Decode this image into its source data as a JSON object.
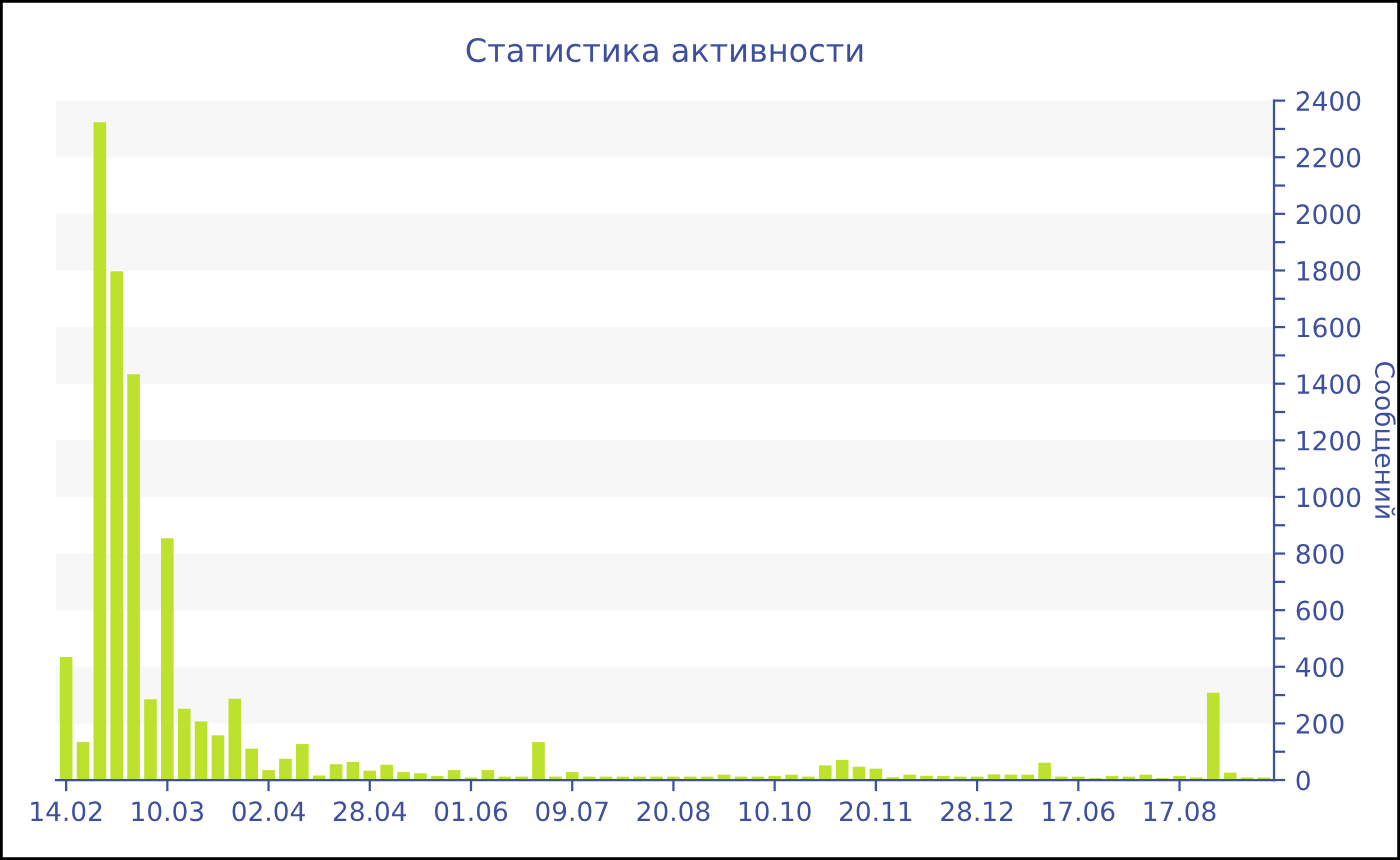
{
  "chart_data": {
    "type": "bar",
    "title": "Статистика активности",
    "ylabel": "Сообщений",
    "color": "#bde22d",
    "categories": [
      "14.02",
      null,
      null,
      null,
      null,
      null,
      "10.03",
      null,
      null,
      null,
      null,
      null,
      "02.04",
      null,
      null,
      null,
      null,
      null,
      "28.04",
      null,
      null,
      null,
      null,
      null,
      "01.06",
      null,
      null,
      null,
      null,
      null,
      "09.07",
      null,
      null,
      null,
      null,
      null,
      "20.08",
      null,
      null,
      null,
      null,
      null,
      "10.10",
      null,
      null,
      null,
      null,
      null,
      "20.11",
      null,
      null,
      null,
      null,
      null,
      "28.12",
      null,
      null,
      null,
      null,
      null,
      "17.06",
      null,
      null,
      null,
      null,
      null,
      "17.08",
      null,
      null,
      null,
      null,
      null
    ],
    "values": [
      435,
      134,
      2324,
      1797,
      1433,
      285,
      854,
      252,
      207,
      158,
      287,
      111,
      35,
      75,
      127,
      16,
      56,
      64,
      33,
      54,
      28,
      24,
      14,
      35,
      9,
      35,
      12,
      12,
      134,
      12,
      28,
      12,
      12,
      12,
      12,
      12,
      12,
      12,
      12,
      19,
      12,
      12,
      14,
      19,
      12,
      52,
      71,
      47,
      40,
      10,
      19,
      15,
      14,
      12,
      12,
      20,
      19,
      19,
      61,
      12,
      12,
      7,
      14,
      12,
      19,
      7,
      14,
      9,
      308,
      26,
      9,
      9
    ],
    "ylim": [
      0,
      2400
    ],
    "yticks": [
      0,
      {
        "value": 100,
        "label": null
      },
      200,
      {
        "value": 300,
        "label": null
      },
      400,
      {
        "value": 500,
        "label": null
      },
      600,
      {
        "value": 700,
        "label": null
      },
      800,
      {
        "value": 900,
        "label": null
      },
      1000,
      {
        "value": 1100,
        "label": null
      },
      1200,
      {
        "value": 1300,
        "label": null
      },
      1400,
      {
        "value": 1500,
        "label": null
      },
      1600,
      {
        "value": 1700,
        "label": null
      },
      1800,
      {
        "value": 1900,
        "label": null
      },
      2000,
      {
        "value": 2100,
        "label": null
      },
      2200,
      {
        "value": 2300,
        "label": null
      },
      2400
    ],
    "bands": [
      {
        "axis": "y",
        "from": 200,
        "to": 400,
        "color": "#f7f7f7"
      },
      {
        "axis": "y",
        "from": 600,
        "to": 800,
        "color": "#f7f7f7"
      },
      {
        "axis": "y",
        "from": 1000,
        "to": 1200,
        "color": "#f7f7f7"
      },
      {
        "axis": "y",
        "from": 1400,
        "to": 1600,
        "color": "#f7f7f7"
      },
      {
        "axis": "y",
        "from": 1800,
        "to": 2000,
        "color": "#f7f7f7"
      },
      {
        "axis": "y",
        "from": 2200,
        "to": 2400,
        "color": "#f7f7f7"
      }
    ],
    "grid": false,
    "legend": false
  }
}
